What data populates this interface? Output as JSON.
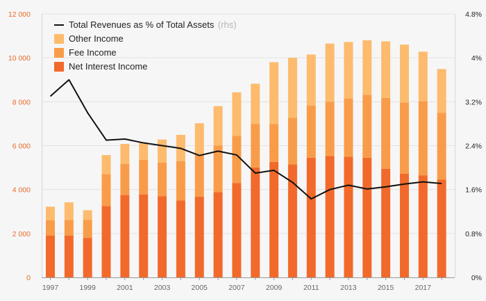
{
  "chart_data": {
    "type": "bar",
    "stacked": true,
    "categories": [
      "1997",
      "1998",
      "1999",
      "2000",
      "2001",
      "2002",
      "2003",
      "2004",
      "2005",
      "2006",
      "2007",
      "2008",
      "2009",
      "2010",
      "2011",
      "2012",
      "2013",
      "2014",
      "2015",
      "2016",
      "2017",
      "2018"
    ],
    "x_tick_labels": [
      "1997",
      "1999",
      "2001",
      "2003",
      "2005",
      "2007",
      "2009",
      "2011",
      "2013",
      "2015",
      "2017"
    ],
    "y_left": {
      "range": [
        0,
        12000
      ],
      "ticks": [
        0,
        2000,
        4000,
        6000,
        8000,
        10000,
        12000
      ],
      "tick_labels": [
        "0",
        "2 000",
        "4 000",
        "6 000",
        "8 000",
        "10 000",
        "12 000"
      ]
    },
    "y_right": {
      "range": [
        0,
        4.8
      ],
      "ticks": [
        0,
        0.8,
        1.6,
        2.4,
        3.2,
        4.0,
        4.8
      ],
      "tick_labels": [
        "0%",
        "0.8%",
        "1.6%",
        "2.4%",
        "3.2%",
        "4%",
        "4.8%"
      ]
    },
    "series": [
      {
        "name": "Net Interest Income",
        "color": "#f26a2b",
        "values": [
          1900,
          1900,
          1800,
          3250,
          3750,
          3780,
          3700,
          3500,
          3680,
          3880,
          4300,
          5000,
          5260,
          5150,
          5450,
          5530,
          5500,
          5450,
          4950,
          4720,
          4650,
          4450
        ]
      },
      {
        "name": "Fee Income",
        "color": "#f99c4a",
        "values": [
          700,
          720,
          820,
          1450,
          1420,
          1570,
          1530,
          1790,
          1920,
          2120,
          2150,
          1980,
          1720,
          2120,
          2380,
          2470,
          2650,
          2870,
          3220,
          3250,
          3370,
          3050
        ]
      },
      {
        "name": "Other Income",
        "color": "#fdbb6e",
        "values": [
          620,
          800,
          440,
          870,
          910,
          780,
          1050,
          1200,
          1420,
          1800,
          1980,
          1840,
          2820,
          2730,
          2320,
          2650,
          2570,
          2480,
          2580,
          2630,
          2260,
          1990
        ]
      }
    ],
    "line": {
      "name": "Total Revenues as % of Total Assets",
      "axis_note": "(rhs)",
      "color": "#111111",
      "axis": "right",
      "values": [
        3.3,
        3.6,
        3.0,
        2.5,
        2.52,
        2.45,
        2.4,
        2.35,
        2.22,
        2.3,
        2.23,
        1.9,
        1.95,
        1.73,
        1.43,
        1.6,
        1.68,
        1.61,
        1.65,
        1.7,
        1.74,
        1.71
      ]
    },
    "legend": {
      "position": "top-left",
      "items": [
        "Total Revenues as % of Total Assets",
        "Other Income",
        "Fee Income",
        "Net Interest Income"
      ]
    },
    "grid": true
  }
}
